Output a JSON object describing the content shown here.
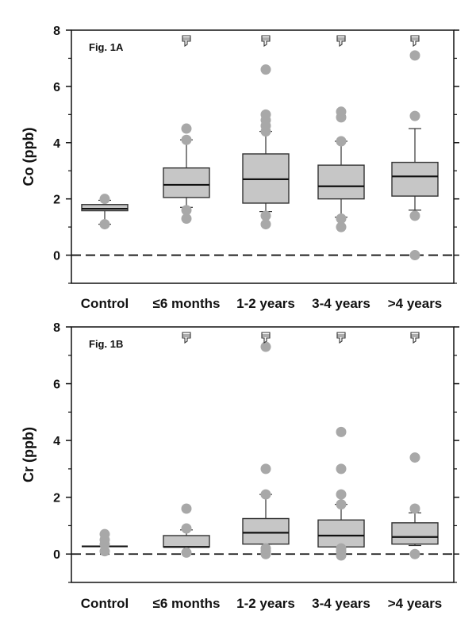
{
  "chart_data": [
    {
      "type": "box",
      "panel_label": "Fig. 1A",
      "ylabel": "Co (ppb)",
      "ylim": [
        -1,
        8
      ],
      "yticks": [
        0,
        2,
        4,
        6,
        8
      ],
      "grid": false,
      "reference_line": {
        "y": 0,
        "style": "dashed"
      },
      "categories": [
        "Control",
        "≤6 months",
        "1-2 years",
        "3-4 years",
        ">4 years"
      ],
      "significance_marker": [
        false,
        true,
        true,
        true,
        true
      ],
      "boxes": [
        {
          "whisker_low": 1.1,
          "q1": 1.58,
          "median": 1.65,
          "q3": 1.8,
          "whisker_high": 1.95,
          "outliers": [
            1.1,
            2.0
          ]
        },
        {
          "whisker_low": 1.7,
          "q1": 2.05,
          "median": 2.5,
          "q3": 3.1,
          "whisker_high": 4.1,
          "outliers": [
            1.3,
            1.6,
            4.1,
            4.5
          ]
        },
        {
          "whisker_low": 1.55,
          "q1": 1.85,
          "median": 2.7,
          "q3": 3.6,
          "whisker_high": 4.4,
          "outliers": [
            1.1,
            1.4,
            4.4,
            4.6,
            4.8,
            5.0,
            6.6
          ]
        },
        {
          "whisker_low": 1.35,
          "q1": 2.0,
          "median": 2.45,
          "q3": 3.2,
          "whisker_high": 4.05,
          "outliers": [
            1.0,
            1.3,
            4.05,
            4.9,
            5.1
          ]
        },
        {
          "whisker_low": 1.6,
          "q1": 2.1,
          "median": 2.8,
          "q3": 3.3,
          "whisker_high": 4.5,
          "outliers": [
            0.0,
            1.4,
            4.95,
            7.1
          ]
        }
      ]
    },
    {
      "type": "box",
      "panel_label": "Fig. 1B",
      "ylabel": "Cr (ppb)",
      "ylim": [
        -1,
        8
      ],
      "yticks": [
        0,
        2,
        4,
        6,
        8
      ],
      "grid": false,
      "reference_line": {
        "y": 0,
        "style": "dashed"
      },
      "categories": [
        "Control",
        "≤6 months",
        "1-2 years",
        "3-4 years",
        ">4 years"
      ],
      "significance_marker": [
        false,
        true,
        true,
        true,
        true
      ],
      "boxes": [
        {
          "whisker_low": 0.27,
          "q1": 0.27,
          "median": 0.27,
          "q3": 0.27,
          "whisker_high": 0.27,
          "outliers": [
            0.1,
            0.35,
            0.5,
            0.7
          ]
        },
        {
          "whisker_low": 0.25,
          "q1": 0.25,
          "median": 0.25,
          "q3": 0.65,
          "whisker_high": 0.85,
          "outliers": [
            0.05,
            0.9,
            1.6
          ]
        },
        {
          "whisker_low": 0.35,
          "q1": 0.35,
          "median": 0.75,
          "q3": 1.25,
          "whisker_high": 2.1,
          "outliers": [
            0.0,
            0.1,
            0.2,
            2.1,
            3.0,
            7.3
          ]
        },
        {
          "whisker_low": 0.25,
          "q1": 0.25,
          "median": 0.65,
          "q3": 1.2,
          "whisker_high": 1.75,
          "outliers": [
            -0.05,
            0.1,
            0.2,
            1.75,
            2.1,
            3.0,
            4.3
          ]
        },
        {
          "whisker_low": 0.3,
          "q1": 0.35,
          "median": 0.6,
          "q3": 1.1,
          "whisker_high": 1.45,
          "outliers": [
            0.0,
            1.6,
            3.4
          ]
        }
      ]
    }
  ]
}
